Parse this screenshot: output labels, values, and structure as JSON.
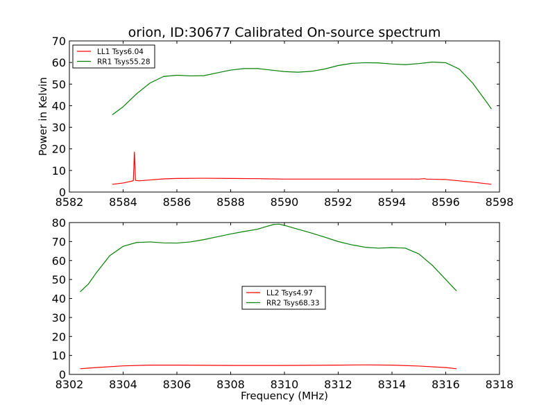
{
  "figure": {
    "title": "orion, ID:30677 Calibrated On-source spectrum"
  },
  "chart_data": [
    {
      "type": "line",
      "title": "orion, ID:30677 Calibrated On-source spectrum",
      "xlabel": "",
      "ylabel": "Power in Kelvin",
      "xlim": [
        8582,
        8598
      ],
      "ylim": [
        0,
        70
      ],
      "xticks": [
        "8582",
        "8584",
        "8586",
        "8588",
        "8590",
        "8592",
        "8594",
        "8596",
        "8598"
      ],
      "yticks": [
        "0",
        "10",
        "20",
        "30",
        "40",
        "50",
        "60",
        "70"
      ],
      "legend_position": "top-left",
      "grid": false,
      "series": [
        {
          "name": "LL1 Tsys6.04",
          "color": "#ff0000",
          "points": [
            [
              8583.6,
              3.6
            ],
            [
              8584.0,
              4.2
            ],
            [
              8584.3,
              5.0
            ],
            [
              8584.38,
              5.3
            ],
            [
              8584.42,
              18.5
            ],
            [
              8584.46,
              5.4
            ],
            [
              8584.6,
              5.2
            ],
            [
              8585.0,
              5.6
            ],
            [
              8585.5,
              6.1
            ],
            [
              8586.0,
              6.3
            ],
            [
              8587.0,
              6.4
            ],
            [
              8588.0,
              6.3
            ],
            [
              8589.0,
              6.2
            ],
            [
              8590.0,
              6.0
            ],
            [
              8591.0,
              6.0
            ],
            [
              8592.0,
              6.0
            ],
            [
              8593.0,
              6.0
            ],
            [
              8594.0,
              6.0
            ],
            [
              8595.0,
              6.0
            ],
            [
              8595.2,
              6.2
            ],
            [
              8595.3,
              6.0
            ],
            [
              8596.0,
              5.8
            ],
            [
              8596.5,
              5.2
            ],
            [
              8597.0,
              4.6
            ],
            [
              8597.7,
              3.6
            ]
          ]
        },
        {
          "name": "RR1 Tsys55.28",
          "color": "#008000",
          "points": [
            [
              8583.6,
              35.8
            ],
            [
              8584.0,
              39.5
            ],
            [
              8584.5,
              45.5
            ],
            [
              8585.0,
              50.5
            ],
            [
              8585.5,
              53.5
            ],
            [
              8586.0,
              54.1
            ],
            [
              8586.5,
              53.8
            ],
            [
              8587.0,
              53.9
            ],
            [
              8587.5,
              55.2
            ],
            [
              8588.0,
              56.5
            ],
            [
              8588.5,
              57.2
            ],
            [
              8589.0,
              57.2
            ],
            [
              8589.5,
              56.5
            ],
            [
              8590.0,
              55.8
            ],
            [
              8590.5,
              55.5
            ],
            [
              8591.0,
              55.9
            ],
            [
              8591.5,
              57.0
            ],
            [
              8592.0,
              58.6
            ],
            [
              8592.5,
              59.6
            ],
            [
              8593.0,
              59.9
            ],
            [
              8593.5,
              59.8
            ],
            [
              8594.0,
              59.3
            ],
            [
              8594.5,
              59.0
            ],
            [
              8595.0,
              59.5
            ],
            [
              8595.5,
              60.2
            ],
            [
              8596.0,
              59.9
            ],
            [
              8596.5,
              57.0
            ],
            [
              8597.0,
              50.5
            ],
            [
              8597.5,
              42.0
            ],
            [
              8597.7,
              38.5
            ]
          ]
        }
      ]
    },
    {
      "type": "line",
      "title": "",
      "xlabel": "Frequency (MHz)",
      "ylabel": "",
      "xlim": [
        8302,
        8318
      ],
      "ylim": [
        0,
        80
      ],
      "xticks": [
        "8302",
        "8304",
        "8306",
        "8308",
        "8310",
        "8312",
        "8314",
        "8316",
        "8318"
      ],
      "yticks": [
        "0",
        "10",
        "20",
        "30",
        "40",
        "50",
        "60",
        "70",
        "80"
      ],
      "legend_position": "center",
      "grid": false,
      "series": [
        {
          "name": "LL2 Tsys4.97",
          "color": "#ff0000",
          "points": [
            [
              8302.4,
              3.0
            ],
            [
              8303.0,
              3.6
            ],
            [
              8304.0,
              4.5
            ],
            [
              8305.0,
              4.9
            ],
            [
              8306.0,
              4.9
            ],
            [
              8307.0,
              4.8
            ],
            [
              8308.0,
              4.7
            ],
            [
              8309.0,
              4.7
            ],
            [
              8310.0,
              4.7
            ],
            [
              8311.0,
              4.8
            ],
            [
              8312.0,
              4.9
            ],
            [
              8313.0,
              5.0
            ],
            [
              8314.0,
              4.9
            ],
            [
              8315.0,
              4.4
            ],
            [
              8316.0,
              3.6
            ],
            [
              8316.4,
              3.0
            ]
          ]
        },
        {
          "name": "RR2 Tsys68.33",
          "color": "#008000",
          "points": [
            [
              8302.4,
              43.5
            ],
            [
              8302.7,
              47.5
            ],
            [
              8303.0,
              53.5
            ],
            [
              8303.5,
              62.5
            ],
            [
              8304.0,
              67.5
            ],
            [
              8304.5,
              69.5
            ],
            [
              8305.0,
              69.8
            ],
            [
              8305.5,
              69.3
            ],
            [
              8306.0,
              69.2
            ],
            [
              8306.5,
              69.8
            ],
            [
              8307.0,
              71.0
            ],
            [
              8307.5,
              72.5
            ],
            [
              8308.0,
              74.0
            ],
            [
              8308.5,
              75.3
            ],
            [
              8309.0,
              76.5
            ],
            [
              8309.3,
              77.8
            ],
            [
              8309.6,
              79.0
            ],
            [
              8309.8,
              79.2
            ],
            [
              8310.0,
              78.5
            ],
            [
              8310.5,
              76.5
            ],
            [
              8311.0,
              74.5
            ],
            [
              8311.5,
              72.3
            ],
            [
              8312.0,
              70.0
            ],
            [
              8312.5,
              68.3
            ],
            [
              8313.0,
              67.0
            ],
            [
              8313.5,
              66.5
            ],
            [
              8314.0,
              66.8
            ],
            [
              8314.5,
              66.5
            ],
            [
              8315.0,
              63.5
            ],
            [
              8315.5,
              57.5
            ],
            [
              8316.0,
              50.0
            ],
            [
              8316.4,
              44.0
            ]
          ]
        }
      ]
    }
  ]
}
